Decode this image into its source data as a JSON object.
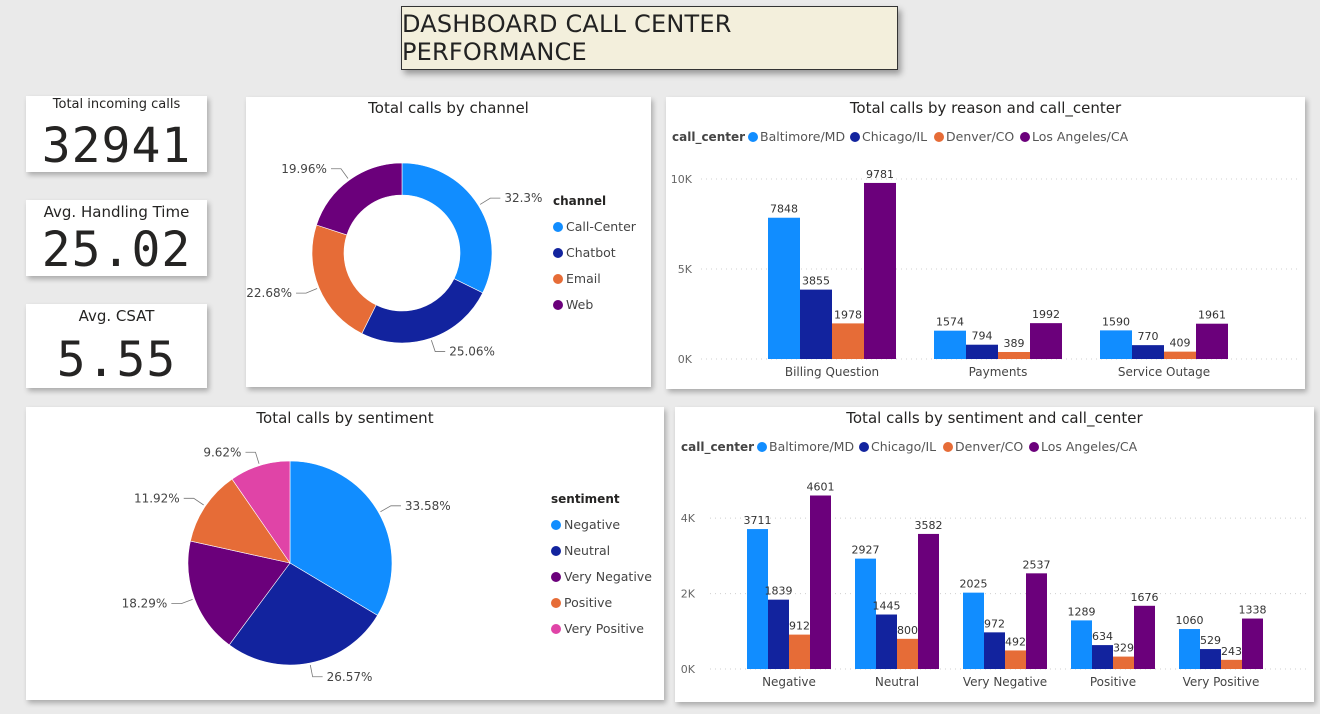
{
  "page_title": "DASHBOARD CALL CENTER PERFORMANCE",
  "kpis": [
    {
      "label": "Total incoming calls",
      "value": "32941"
    },
    {
      "label": "Avg. Handling Time",
      "value": "25.02"
    },
    {
      "label": "Avg. CSAT",
      "value": "5.55"
    }
  ],
  "colors": {
    "baltimore": "#118DFF",
    "chicago": "#12239E",
    "denver": "#E66C37",
    "los_angeles": "#6B007B",
    "very_positive": "#E044A7"
  },
  "chart_data": [
    {
      "type": "pie",
      "variant": "donut",
      "title": "Total calls by channel",
      "legend_title": "channel",
      "categories": [
        "Call-Center",
        "Chatbot",
        "Email",
        "Web"
      ],
      "values": [
        32.3,
        25.06,
        22.68,
        19.96
      ],
      "labels": [
        "32.3%",
        "25.06%",
        "22.68%",
        "19.96%"
      ],
      "colors": [
        "#118DFF",
        "#12239E",
        "#E66C37",
        "#6B007B"
      ]
    },
    {
      "type": "bar",
      "title": "Total calls by reason and call_center",
      "legend_title": "call_center",
      "categories": [
        "Billing Question",
        "Payments",
        "Service Outage"
      ],
      "series": [
        {
          "name": "Baltimore/MD",
          "values": [
            7848,
            1574,
            1590
          ],
          "color": "#118DFF"
        },
        {
          "name": "Chicago/IL",
          "values": [
            3855,
            794,
            770
          ],
          "color": "#12239E"
        },
        {
          "name": "Denver/CO",
          "values": [
            1978,
            389,
            409
          ],
          "color": "#E66C37"
        },
        {
          "name": "Los Angeles/CA",
          "values": [
            9781,
            1992,
            1961
          ],
          "color": "#6B007B"
        }
      ],
      "yticks": [
        0,
        5000,
        10000
      ],
      "ytick_labels": [
        "0K",
        "5K",
        "10K"
      ],
      "ylim": [
        0,
        10000
      ],
      "grid": true
    },
    {
      "type": "pie",
      "title": "Total calls by sentiment",
      "legend_title": "sentiment",
      "categories": [
        "Negative",
        "Neutral",
        "Very Negative",
        "Positive",
        "Very Positive"
      ],
      "values": [
        33.58,
        26.57,
        18.29,
        11.92,
        9.62
      ],
      "labels": [
        "33.58%",
        "26.57%",
        "18.29%",
        "11.92%",
        "9.62%"
      ],
      "colors": [
        "#118DFF",
        "#12239E",
        "#6B007B",
        "#E66C37",
        "#E044A7"
      ]
    },
    {
      "type": "bar",
      "title": "Total calls by sentiment and call_center",
      "legend_title": "call_center",
      "categories": [
        "Negative",
        "Neutral",
        "Very Negative",
        "Positive",
        "Very Positive"
      ],
      "series": [
        {
          "name": "Baltimore/MD",
          "values": [
            3711,
            2927,
            2025,
            1289,
            1060
          ],
          "color": "#118DFF"
        },
        {
          "name": "Chicago/IL",
          "values": [
            1839,
            1445,
            972,
            634,
            529
          ],
          "color": "#12239E"
        },
        {
          "name": "Denver/CO",
          "values": [
            912,
            800,
            492,
            329,
            243
          ],
          "color": "#E66C37"
        },
        {
          "name": "Los Angeles/CA",
          "values": [
            4601,
            3582,
            2537,
            1676,
            1338
          ],
          "color": "#6B007B"
        }
      ],
      "yticks": [
        0,
        2000,
        4000
      ],
      "ytick_labels": [
        "0K",
        "2K",
        "4K"
      ],
      "ylim": [
        0,
        4800
      ],
      "grid": true
    }
  ]
}
